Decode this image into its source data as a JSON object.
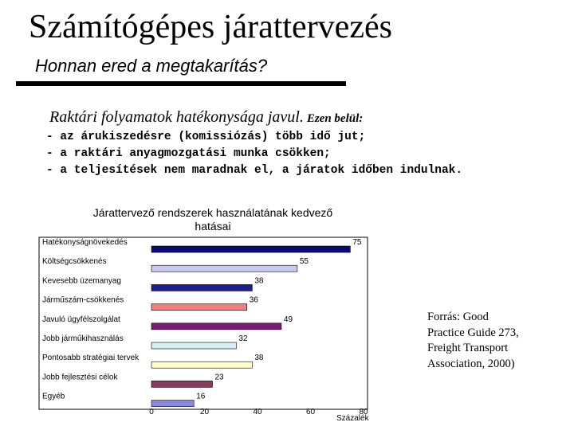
{
  "slide": {
    "title": "Számítógépes járattervezés",
    "subtitle": "Honnan ered a megtakarítás?",
    "lead_main": "Raktári folyamatok hatékonysága javul.",
    "lead_tail": "Ezen belül:",
    "bullets": [
      "- az árukiszedésre (komissiózás) több idő jut;",
      "- a raktári anyagmozgatási munka csökken;",
      "- a teljesítések nem maradnak el, a járatok időben indulnak."
    ],
    "source_lines": [
      "Forrás: Good",
      "Practice Guide 273,",
      "Freight Transport",
      "Association, 2000)"
    ]
  },
  "chart_data": {
    "type": "bar",
    "orientation": "horizontal",
    "title_lines": [
      "Járattervező rendszerek használatának kedvező",
      "hatásai"
    ],
    "categories": [
      "Hatékonyságnövekedés",
      "Költségcsökkenés",
      "Kevesebb üzemanyag",
      "Járműszám-csökkenés",
      "Javuló ügyfélszolgálat",
      "Jobb járműkihasználás",
      "Pontosabb stratégiai tervek",
      "Jobb fejlesztési célok",
      "Egyéb"
    ],
    "values": [
      75,
      55,
      38,
      36,
      49,
      32,
      38,
      23,
      16
    ],
    "colors": [
      "#0b0b73",
      "#c8c8f2",
      "#1d1d8c",
      "#f07f7f",
      "#7a1a73",
      "#d4f0f4",
      "#ffffc8",
      "#8a3a5c",
      "#8a8ae6"
    ],
    "xlim": [
      0,
      80
    ],
    "xticks": [
      0,
      20,
      40,
      60,
      80
    ],
    "xlabel": "Százalék",
    "grid": false
  }
}
